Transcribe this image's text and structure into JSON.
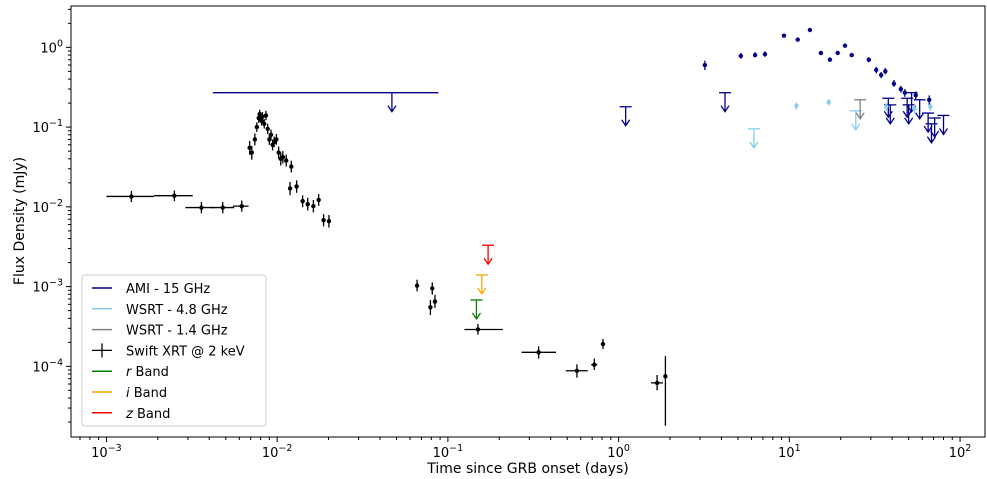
{
  "chart_data": {
    "type": "scatter",
    "xlabel": "Time since GRB onset (days)",
    "ylabel": "Flux Density (mJy)",
    "xscale": "log",
    "yscale": "log",
    "xlim": [
      0.00062,
      140
    ],
    "ylim": [
      1.3e-05,
      3.3
    ],
    "x_ticks": [
      {
        "value": 0.001,
        "base": "10",
        "exp": "−3"
      },
      {
        "value": 0.01,
        "base": "10",
        "exp": "−2"
      },
      {
        "value": 0.1,
        "base": "10",
        "exp": "−1"
      },
      {
        "value": 1,
        "base": "10",
        "exp": "0"
      },
      {
        "value": 10,
        "base": "10",
        "exp": "1"
      },
      {
        "value": 100,
        "base": "10",
        "exp": "2"
      }
    ],
    "y_ticks": [
      {
        "value": 0.0001,
        "base": "10",
        "exp": "−4"
      },
      {
        "value": 0.001,
        "base": "10",
        "exp": "−3"
      },
      {
        "value": 0.01,
        "base": "10",
        "exp": "−2"
      },
      {
        "value": 0.1,
        "base": "10",
        "exp": "−1"
      },
      {
        "value": 1,
        "base": "10",
        "exp": "0"
      }
    ],
    "grid": false,
    "legend_position": "lower-left",
    "legend": [
      {
        "label": "AMI - 15 GHz",
        "series": "ami",
        "kind": "line"
      },
      {
        "label": "WSRT - 4.8 GHz",
        "series": "wsrt48",
        "kind": "line"
      },
      {
        "label": "WSRT - 1.4 GHz",
        "series": "wsrt14",
        "kind": "line"
      },
      {
        "label": "Swift XRT @ 2 keV",
        "series": "xrt",
        "kind": "errorbar"
      },
      {
        "label_prefix": "",
        "label_italic": "r",
        "label_suffix": " Band",
        "series": "r",
        "kind": "line"
      },
      {
        "label_prefix": "",
        "label_italic": "i",
        "label_suffix": " Band",
        "series": "i",
        "kind": "line"
      },
      {
        "label_prefix": "",
        "label_italic": "z",
        "label_suffix": " Band",
        "series": "z",
        "kind": "line"
      }
    ],
    "series": [
      {
        "id": "ami",
        "name": "AMI - 15 GHz",
        "color": "#00008b",
        "detections": [
          {
            "x": 3.2,
            "y": 0.6,
            "ylo": 0.52,
            "yhi": 0.68
          },
          {
            "x": 5.2,
            "y": 0.78,
            "ylo": 0.72,
            "yhi": 0.85
          },
          {
            "x": 6.3,
            "y": 0.8,
            "ylo": 0.75,
            "yhi": 0.87
          },
          {
            "x": 7.2,
            "y": 0.82,
            "ylo": 0.76,
            "yhi": 0.89
          },
          {
            "x": 9.3,
            "y": 1.4,
            "ylo": 1.33,
            "yhi": 1.48
          },
          {
            "x": 11.2,
            "y": 1.25,
            "ylo": 1.19,
            "yhi": 1.32
          },
          {
            "x": 13.2,
            "y": 1.65,
            "ylo": 1.58,
            "yhi": 1.73
          },
          {
            "x": 15.3,
            "y": 0.85,
            "ylo": 0.8,
            "yhi": 0.9
          },
          {
            "x": 17.3,
            "y": 0.7,
            "ylo": 0.66,
            "yhi": 0.75
          },
          {
            "x": 19.2,
            "y": 0.85,
            "ylo": 0.8,
            "yhi": 0.9
          },
          {
            "x": 21.2,
            "y": 1.05,
            "ylo": 1.0,
            "yhi": 1.1
          },
          {
            "x": 23.2,
            "y": 0.8,
            "ylo": 0.76,
            "yhi": 0.85
          },
          {
            "x": 29.2,
            "y": 0.7,
            "ylo": 0.65,
            "yhi": 0.75
          },
          {
            "x": 32.3,
            "y": 0.52,
            "ylo": 0.47,
            "yhi": 0.57
          },
          {
            "x": 34.5,
            "y": 0.45,
            "ylo": 0.41,
            "yhi": 0.49
          },
          {
            "x": 36.5,
            "y": 0.5,
            "ylo": 0.46,
            "yhi": 0.55
          },
          {
            "x": 41.0,
            "y": 0.35,
            "ylo": 0.32,
            "yhi": 0.39
          },
          {
            "x": 45.0,
            "y": 0.3,
            "ylo": 0.27,
            "yhi": 0.33
          },
          {
            "x": 47.5,
            "y": 0.27,
            "ylo": 0.24,
            "yhi": 0.3
          },
          {
            "x": 55.0,
            "y": 0.25,
            "ylo": 0.22,
            "yhi": 0.28
          },
          {
            "x": 66.0,
            "y": 0.22,
            "ylo": 0.19,
            "yhi": 0.25
          }
        ],
        "upper_limits": [
          {
            "x": 0.047,
            "y": 0.27,
            "xlo": 0.0042,
            "xhi": 0.088
          },
          {
            "x": 1.1,
            "y": 0.18
          },
          {
            "x": 4.2,
            "y": 0.27
          },
          {
            "x": 38.0,
            "y": 0.23
          },
          {
            "x": 39.0,
            "y": 0.19
          },
          {
            "x": 49.0,
            "y": 0.23
          },
          {
            "x": 50.0,
            "y": 0.19
          },
          {
            "x": 52.0,
            "y": 0.27
          },
          {
            "x": 58.0,
            "y": 0.22
          },
          {
            "x": 65.0,
            "y": 0.15
          },
          {
            "x": 68.0,
            "y": 0.11
          },
          {
            "x": 71.0,
            "y": 0.13
          },
          {
            "x": 80.0,
            "y": 0.14
          }
        ]
      },
      {
        "id": "wsrt48",
        "name": "WSRT - 4.8 GHz",
        "color": "#87ceeb",
        "detections": [
          {
            "x": 11.0,
            "y": 0.185,
            "ylo": 0.165,
            "yhi": 0.205
          },
          {
            "x": 17.0,
            "y": 0.205,
            "ylo": 0.185,
            "yhi": 0.225
          },
          {
            "x": 37.0,
            "y": 0.18,
            "ylo": 0.16,
            "yhi": 0.2
          },
          {
            "x": 54.0,
            "y": 0.17,
            "ylo": 0.15,
            "yhi": 0.19
          },
          {
            "x": 67.0,
            "y": 0.18,
            "ylo": 0.16,
            "yhi": 0.2
          }
        ],
        "upper_limits": [
          {
            "x": 6.2,
            "y": 0.095
          },
          {
            "x": 24.5,
            "y": 0.16
          }
        ]
      },
      {
        "id": "wsrt14",
        "name": "WSRT - 1.4 GHz",
        "color": "#808080",
        "detections": [],
        "upper_limits": [
          {
            "x": 26.0,
            "y": 0.22
          }
        ]
      },
      {
        "id": "xrt",
        "name": "Swift XRT @ 2 keV",
        "color": "#000000",
        "detections": [
          {
            "x": 0.0014,
            "y": 0.0135,
            "xlo": 0.001,
            "xhi": 0.0019,
            "ylo": 0.0115,
            "yhi": 0.0158
          },
          {
            "x": 0.0025,
            "y": 0.0138,
            "xlo": 0.0019,
            "xhi": 0.0032,
            "ylo": 0.0118,
            "yhi": 0.016
          },
          {
            "x": 0.0036,
            "y": 0.0098,
            "xlo": 0.0029,
            "xhi": 0.0043,
            "ylo": 0.0083,
            "yhi": 0.0115
          },
          {
            "x": 0.0048,
            "y": 0.0098,
            "xlo": 0.0041,
            "xhi": 0.0056,
            "ylo": 0.0083,
            "yhi": 0.0115
          },
          {
            "x": 0.0062,
            "y": 0.0102,
            "xlo": 0.0055,
            "xhi": 0.0068,
            "ylo": 0.0087,
            "yhi": 0.012
          },
          {
            "x": 0.0069,
            "y": 0.055,
            "ylo": 0.045,
            "yhi": 0.067
          },
          {
            "x": 0.0071,
            "y": 0.048,
            "ylo": 0.039,
            "yhi": 0.058
          },
          {
            "x": 0.0074,
            "y": 0.07,
            "ylo": 0.059,
            "yhi": 0.083
          },
          {
            "x": 0.0076,
            "y": 0.1,
            "ylo": 0.087,
            "yhi": 0.115
          },
          {
            "x": 0.0078,
            "y": 0.13,
            "ylo": 0.113,
            "yhi": 0.15
          },
          {
            "x": 0.0079,
            "y": 0.145,
            "ylo": 0.127,
            "yhi": 0.165
          },
          {
            "x": 0.0081,
            "y": 0.12,
            "ylo": 0.105,
            "yhi": 0.137
          },
          {
            "x": 0.0082,
            "y": 0.135,
            "ylo": 0.118,
            "yhi": 0.155
          },
          {
            "x": 0.0084,
            "y": 0.11,
            "ylo": 0.096,
            "yhi": 0.126
          },
          {
            "x": 0.0086,
            "y": 0.14,
            "ylo": 0.122,
            "yhi": 0.16
          },
          {
            "x": 0.0088,
            "y": 0.095,
            "ylo": 0.082,
            "yhi": 0.11
          },
          {
            "x": 0.009,
            "y": 0.07,
            "ylo": 0.06,
            "yhi": 0.082
          },
          {
            "x": 0.0092,
            "y": 0.08,
            "ylo": 0.069,
            "yhi": 0.093
          },
          {
            "x": 0.0094,
            "y": 0.06,
            "ylo": 0.051,
            "yhi": 0.07
          },
          {
            "x": 0.0096,
            "y": 0.065,
            "ylo": 0.056,
            "yhi": 0.076
          },
          {
            "x": 0.0099,
            "y": 0.07,
            "ylo": 0.06,
            "yhi": 0.082
          },
          {
            "x": 0.0102,
            "y": 0.048,
            "ylo": 0.04,
            "yhi": 0.057
          },
          {
            "x": 0.0105,
            "y": 0.04,
            "ylo": 0.033,
            "yhi": 0.048
          },
          {
            "x": 0.0108,
            "y": 0.042,
            "ylo": 0.035,
            "yhi": 0.05
          },
          {
            "x": 0.0113,
            "y": 0.038,
            "ylo": 0.032,
            "yhi": 0.045
          },
          {
            "x": 0.0121,
            "y": 0.032,
            "ylo": 0.027,
            "yhi": 0.038
          },
          {
            "x": 0.0119,
            "y": 0.017,
            "ylo": 0.014,
            "yhi": 0.0205
          },
          {
            "x": 0.013,
            "y": 0.018,
            "ylo": 0.015,
            "yhi": 0.0215
          },
          {
            "x": 0.0141,
            "y": 0.0118,
            "ylo": 0.0099,
            "yhi": 0.014
          },
          {
            "x": 0.0151,
            "y": 0.0108,
            "ylo": 0.009,
            "yhi": 0.013
          },
          {
            "x": 0.0163,
            "y": 0.0102,
            "ylo": 0.0085,
            "yhi": 0.0122
          },
          {
            "x": 0.0175,
            "y": 0.0122,
            "ylo": 0.0103,
            "yhi": 0.0145
          },
          {
            "x": 0.0187,
            "y": 0.0068,
            "ylo": 0.0057,
            "yhi": 0.0081
          },
          {
            "x": 0.0201,
            "y": 0.0066,
            "ylo": 0.0055,
            "yhi": 0.0079
          },
          {
            "x": 0.066,
            "y": 0.00103,
            "ylo": 0.00087,
            "yhi": 0.00122
          },
          {
            "x": 0.079,
            "y": 0.00055,
            "ylo": 0.00044,
            "yhi": 0.00068
          },
          {
            "x": 0.081,
            "y": 0.00095,
            "ylo": 0.00079,
            "yhi": 0.00113
          },
          {
            "x": 0.084,
            "y": 0.00065,
            "ylo": 0.00054,
            "yhi": 0.00079
          },
          {
            "x": 0.15,
            "y": 0.00029,
            "xlo": 0.125,
            "xhi": 0.21,
            "ylo": 0.00025,
            "yhi": 0.00034
          },
          {
            "x": 0.34,
            "y": 0.00015,
            "xlo": 0.27,
            "xhi": 0.43,
            "ylo": 0.000125,
            "yhi": 0.000178
          },
          {
            "x": 0.57,
            "y": 8.8e-05,
            "xlo": 0.49,
            "xhi": 0.66,
            "ylo": 7.2e-05,
            "yhi": 0.000106
          },
          {
            "x": 0.72,
            "y": 0.000105,
            "xlo": 0.69,
            "xhi": 0.75,
            "ylo": 9e-05,
            "yhi": 0.000125
          },
          {
            "x": 0.81,
            "y": 0.00019,
            "ylo": 0.000165,
            "yhi": 0.00022
          },
          {
            "x": 1.68,
            "y": 6.2e-05,
            "xlo": 1.55,
            "xhi": 1.82,
            "ylo": 5e-05,
            "yhi": 7.8e-05
          },
          {
            "x": 1.88,
            "y": 7.5e-05,
            "ylo": 1.8e-05,
            "yhi": 0.000135
          }
        ],
        "upper_limits": []
      },
      {
        "id": "r",
        "name": "r Band",
        "color": "#008000",
        "detections": [],
        "upper_limits": [
          {
            "x": 0.147,
            "y": 0.00068
          }
        ]
      },
      {
        "id": "i",
        "name": "i Band",
        "color": "#ffa500",
        "detections": [],
        "upper_limits": [
          {
            "x": 0.158,
            "y": 0.0014
          }
        ]
      },
      {
        "id": "z",
        "name": "z Band",
        "color": "#ff0000",
        "detections": [],
        "upper_limits": [
          {
            "x": 0.172,
            "y": 0.0033
          }
        ]
      }
    ]
  }
}
